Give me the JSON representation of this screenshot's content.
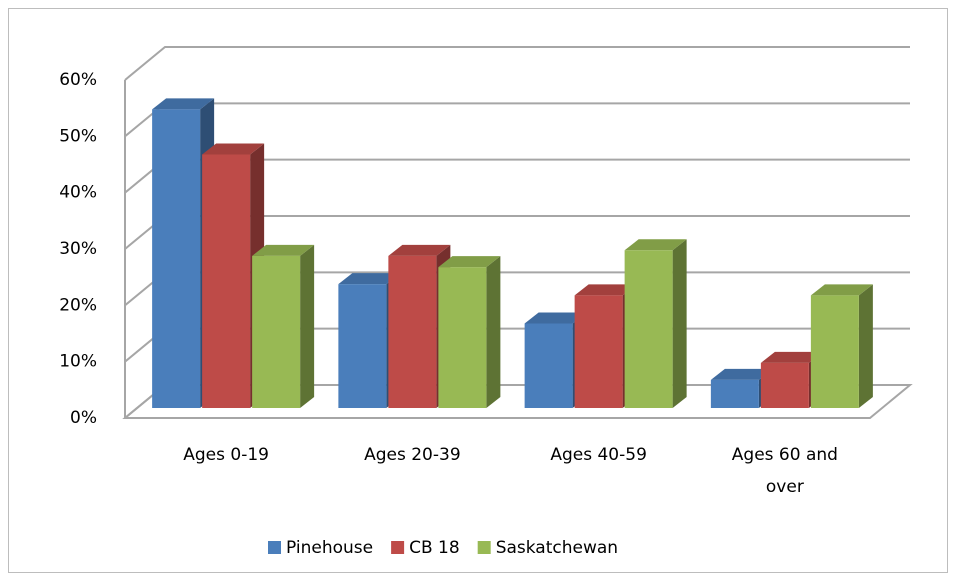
{
  "chart_data": {
    "type": "bar3d",
    "categories": [
      "Ages 0-19",
      "Ages 20-39",
      "Ages 40-59",
      "Ages 60 and over"
    ],
    "series": [
      {
        "name": "Pinehouse",
        "color": "#4a7ebb",
        "values": [
          53,
          22,
          15,
          5
        ]
      },
      {
        "name": "CB 18",
        "color": "#be4b48",
        "values": [
          45,
          27,
          20,
          8
        ]
      },
      {
        "name": "Saskatchewan",
        "color": "#98b954",
        "values": [
          27,
          25,
          28,
          20
        ]
      }
    ],
    "ylim": [
      0,
      60
    ],
    "yticks": [
      {
        "value": 0,
        "label": "0%"
      },
      {
        "value": 10,
        "label": "10%"
      },
      {
        "value": 20,
        "label": "20%"
      },
      {
        "value": 30,
        "label": "30%"
      },
      {
        "value": 40,
        "label": "40%"
      },
      {
        "value": 50,
        "label": "50%"
      },
      {
        "value": 60,
        "label": "60%"
      }
    ],
    "grid": true,
    "legend": "bottom"
  }
}
